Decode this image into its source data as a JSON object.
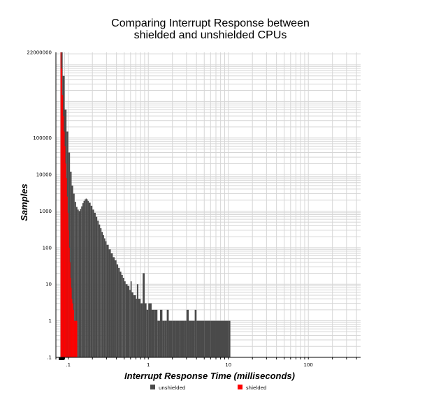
{
  "chart_data": {
    "type": "bar",
    "title_lines": [
      "Comparing Interrupt Response between",
      "shielded and unshielded CPUs"
    ],
    "xlabel": "Interrupt Response Time (milliseconds)",
    "ylabel": "Samples",
    "x_scale": "log",
    "y_scale": "log",
    "xlim": [
      0.07,
      450
    ],
    "ylim": [
      0.1,
      22000000
    ],
    "x_ticks": [
      {
        "value": 0.1,
        "label": ".1"
      },
      {
        "value": 1,
        "label": "1"
      },
      {
        "value": 10,
        "label": "10"
      },
      {
        "value": 100,
        "label": "100"
      }
    ],
    "y_ticks": [
      {
        "value": 0.1,
        "label": ".1"
      },
      {
        "value": 1,
        "label": "1"
      },
      {
        "value": 10,
        "label": "10"
      },
      {
        "value": 100,
        "label": "100"
      },
      {
        "value": 1000,
        "label": "1000"
      },
      {
        "value": 10000,
        "label": "10000"
      },
      {
        "value": 100000,
        "label": "100000"
      },
      {
        "value": 22000000,
        "label": "22000000"
      }
    ],
    "grid": true,
    "legend_position": "bottom",
    "series": [
      {
        "name": "unshielded",
        "color": "#4a4a4a",
        "points": [
          [
            0.08,
            22000000
          ],
          [
            0.085,
            5000000
          ],
          [
            0.09,
            600000
          ],
          [
            0.095,
            150000
          ],
          [
            0.1,
            40000
          ],
          [
            0.105,
            12000
          ],
          [
            0.11,
            5000
          ],
          [
            0.115,
            3000
          ],
          [
            0.12,
            1800
          ],
          [
            0.125,
            1300
          ],
          [
            0.13,
            1100
          ],
          [
            0.135,
            1000
          ],
          [
            0.14,
            1150
          ],
          [
            0.145,
            1350
          ],
          [
            0.15,
            1650
          ],
          [
            0.155,
            1900
          ],
          [
            0.16,
            2100
          ],
          [
            0.165,
            2200
          ],
          [
            0.17,
            2100
          ],
          [
            0.175,
            1900
          ],
          [
            0.18,
            1700
          ],
          [
            0.19,
            1400
          ],
          [
            0.2,
            1100
          ],
          [
            0.21,
            900
          ],
          [
            0.22,
            700
          ],
          [
            0.23,
            550
          ],
          [
            0.24,
            430
          ],
          [
            0.25,
            340
          ],
          [
            0.26,
            270
          ],
          [
            0.27,
            220
          ],
          [
            0.28,
            180
          ],
          [
            0.29,
            150
          ],
          [
            0.3,
            120
          ],
          [
            0.32,
            90
          ],
          [
            0.34,
            70
          ],
          [
            0.36,
            55
          ],
          [
            0.38,
            45
          ],
          [
            0.4,
            35
          ],
          [
            0.42,
            28
          ],
          [
            0.44,
            22
          ],
          [
            0.46,
            18
          ],
          [
            0.48,
            15
          ],
          [
            0.5,
            12
          ],
          [
            0.52,
            10
          ],
          [
            0.55,
            9
          ],
          [
            0.58,
            7
          ],
          [
            0.6,
            12
          ],
          [
            0.62,
            6
          ],
          [
            0.65,
            5
          ],
          [
            0.7,
            4
          ],
          [
            0.72,
            10
          ],
          [
            0.75,
            4
          ],
          [
            0.8,
            3
          ],
          [
            0.85,
            20
          ],
          [
            0.9,
            3
          ],
          [
            0.95,
            2
          ],
          [
            1.0,
            3
          ],
          [
            1.1,
            2
          ],
          [
            1.2,
            2
          ],
          [
            1.3,
            1
          ],
          [
            1.4,
            2
          ],
          [
            1.5,
            1
          ],
          [
            1.6,
            1
          ],
          [
            1.7,
            2
          ],
          [
            1.8,
            1
          ],
          [
            2.0,
            1
          ],
          [
            2.2,
            1
          ],
          [
            2.5,
            1
          ],
          [
            2.8,
            1
          ],
          [
            3.0,
            2
          ],
          [
            3.2,
            1
          ],
          [
            3.5,
            1
          ],
          [
            3.8,
            2
          ],
          [
            4.0,
            1
          ],
          [
            4.5,
            1
          ],
          [
            5.0,
            1
          ],
          [
            5.5,
            1
          ],
          [
            6.0,
            1
          ],
          [
            7.0,
            1
          ],
          [
            10.0,
            1
          ]
        ]
      },
      {
        "name": "shielded",
        "color": "#ff0000",
        "points": [
          [
            0.08,
            22000000
          ],
          [
            0.082,
            8000000
          ],
          [
            0.084,
            1500000
          ],
          [
            0.086,
            400000
          ],
          [
            0.088,
            150000
          ],
          [
            0.09,
            60000
          ],
          [
            0.092,
            20000
          ],
          [
            0.094,
            8000
          ],
          [
            0.096,
            2500
          ],
          [
            0.098,
            900
          ],
          [
            0.1,
            300
          ],
          [
            0.102,
            100
          ],
          [
            0.104,
            40
          ],
          [
            0.106,
            15
          ],
          [
            0.108,
            8
          ],
          [
            0.11,
            4
          ],
          [
            0.112,
            3
          ],
          [
            0.115,
            2
          ],
          [
            0.118,
            1
          ],
          [
            0.122,
            1
          ]
        ]
      }
    ]
  }
}
